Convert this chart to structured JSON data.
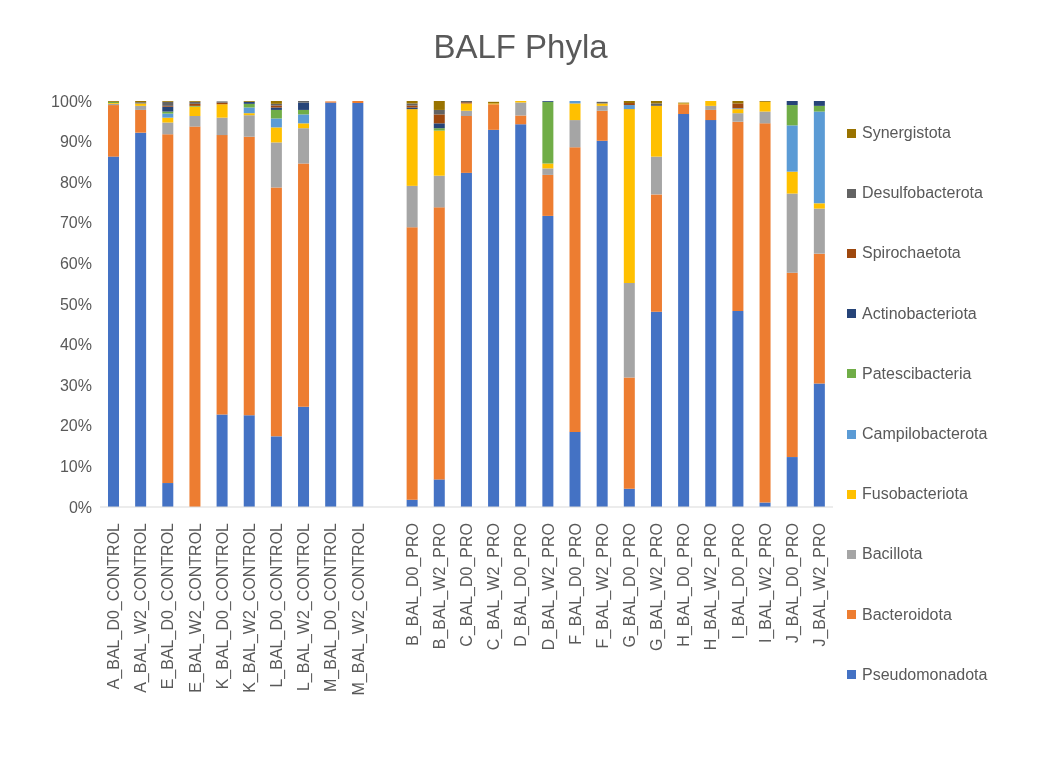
{
  "chart_data": {
    "type": "bar",
    "title": "BALF Phyla",
    "stacked": true,
    "legend": "right",
    "categories": [
      "A_BAL_D0_CONTROL",
      "A_BAL_W2_CONTROL",
      "E_BAL_D0_CONTROL",
      "E_BAL_W2_CONTROL",
      "K_BAL_D0_CONTROL",
      "K_BAL_W2_CONTROL",
      "L_BAL_D0_CONTROL",
      "L_BAL_W2_CONTROL",
      "M_BAL_D0_CONTROL",
      "M_BAL_W2_CONTROL",
      null,
      "B_BAL_D0_PRO",
      "B_BAL_W2_PRO",
      "C_BAL_D0_PRO",
      "C_BAL_W2_PRO",
      "D_BAL_D0_PRO",
      "D_BAL_W2_PRO",
      "F_BAL_D0_PRO",
      "F_BAL_W2_PRO",
      "G_BAL_D0_PRO",
      "G_BAL_W2_PRO",
      "H_BAL_D0_PRO",
      "H_BAL_W2_PRO",
      "I_BAL_D0_PRO",
      "I_BAL_W2_PRO",
      "J_BAL_D0_PRO",
      "J_BAL_W2_PRO"
    ],
    "ylim": [
      0,
      100
    ],
    "yticks": [
      {
        "value": 0,
        "label": "0%"
      },
      {
        "value": 10,
        "label": "10%"
      },
      {
        "value": 20,
        "label": "20%"
      },
      {
        "value": 30,
        "label": "30%"
      },
      {
        "value": 40,
        "label": "40%"
      },
      {
        "value": 50,
        "label": "50%"
      },
      {
        "value": 60,
        "label": "60%"
      },
      {
        "value": 70,
        "label": "70%"
      },
      {
        "value": 80,
        "label": "80%"
      },
      {
        "value": 90,
        "label": "90%"
      },
      {
        "value": 100,
        "label": "100%"
      }
    ],
    "series": [
      {
        "name": "Pseudomonadota",
        "color": "#4472c4",
        "values": [
          86.3,
          92.2,
          5.9,
          0,
          22.8,
          22.6,
          17.4,
          24.7,
          99.6,
          99.5,
          null,
          1.8,
          6.8,
          82.3,
          92.9,
          94.3,
          71.7,
          18.5,
          90.2,
          4.5,
          48.1,
          96.8,
          95.3,
          48.3,
          1.1,
          12.3,
          30.4
        ]
      },
      {
        "name": "Bacteroidota",
        "color": "#ed7d31",
        "values": [
          12.7,
          5.6,
          85.9,
          93.7,
          68.8,
          68.6,
          61.3,
          59.9,
          0.3,
          0.5,
          null,
          67.1,
          67.0,
          14.0,
          6.3,
          2.1,
          10.1,
          70.1,
          7.4,
          27.4,
          28.9,
          2.4,
          2.5,
          46.6,
          93.4,
          45.4,
          32.0
        ]
      },
      {
        "name": "Bacillota",
        "color": "#a5a5a5",
        "values": [
          0.3,
          1.0,
          2.9,
          2.6,
          4.3,
          5.3,
          11.1,
          8.7,
          0,
          0,
          null,
          10.2,
          7.8,
          1.3,
          0,
          3.2,
          1.6,
          6.7,
          1.2,
          23.3,
          9.3,
          0,
          1.0,
          2.1,
          2.9,
          19.5,
          11.1
        ]
      },
      {
        "name": "Fusobacteriota",
        "color": "#ffc000",
        "values": [
          0.2,
          0.6,
          1.2,
          2.3,
          3.3,
          0.5,
          3.7,
          1.2,
          0,
          0,
          null,
          18.9,
          11.1,
          1.8,
          0.2,
          0.4,
          1.2,
          4.1,
          0.6,
          42.8,
          12.5,
          0.2,
          1.2,
          1.0,
          2.4,
          5.4,
          1.3
        ]
      },
      {
        "name": "Campilobacterota",
        "color": "#5b9bd5",
        "values": [
          0,
          0,
          1.0,
          0,
          0,
          1.4,
          2.2,
          2.2,
          0,
          0,
          null,
          0,
          0,
          0,
          0,
          0,
          0,
          0.6,
          0,
          1.0,
          0,
          0,
          0,
          0.2,
          0,
          11.4,
          22.6
        ]
      },
      {
        "name": "Patescibacteria",
        "color": "#70ad47",
        "values": [
          0.3,
          0,
          0.5,
          0.2,
          0,
          0.9,
          2.1,
          1.1,
          0,
          0,
          null,
          0,
          0.6,
          0,
          0,
          0,
          15.2,
          0,
          0,
          0,
          0,
          0,
          0,
          0,
          0,
          5.0,
          1.4
        ]
      },
      {
        "name": "Actinobacteriota",
        "color": "#264478",
        "values": [
          0,
          0,
          1.2,
          0,
          0,
          0.5,
          0.6,
          1.8,
          0,
          0,
          null,
          0.4,
          1.2,
          0,
          0,
          0,
          0.2,
          0,
          0,
          0,
          0,
          0,
          0,
          0,
          0,
          1.0,
          1.2
        ]
      },
      {
        "name": "Spirochaetota",
        "color": "#9e480e",
        "values": [
          0,
          0,
          0.2,
          0.5,
          0.4,
          0,
          0.5,
          0,
          0,
          0,
          null,
          0.5,
          2.2,
          0.3,
          0,
          0,
          0,
          0,
          0,
          0.5,
          0,
          0,
          0,
          1.2,
          0,
          0,
          0
        ]
      },
      {
        "name": "Desulfobacterota",
        "color": "#636363",
        "values": [
          0,
          0.3,
          1.0,
          0.5,
          0.3,
          0,
          0.4,
          0.4,
          0,
          0,
          null,
          0.5,
          1.1,
          0.3,
          0,
          0,
          0,
          0,
          0.4,
          0,
          0.6,
          0,
          0,
          0,
          0,
          0,
          0
        ]
      },
      {
        "name": "Synergistota",
        "color": "#997300",
        "values": [
          0.2,
          0.3,
          0.2,
          0.2,
          0,
          0.2,
          0.7,
          0,
          0,
          0,
          null,
          0.6,
          2.2,
          0,
          0.4,
          0,
          0,
          0,
          0,
          0.5,
          0.6,
          0.2,
          0,
          0.6,
          0.2,
          0,
          0
        ]
      }
    ]
  }
}
